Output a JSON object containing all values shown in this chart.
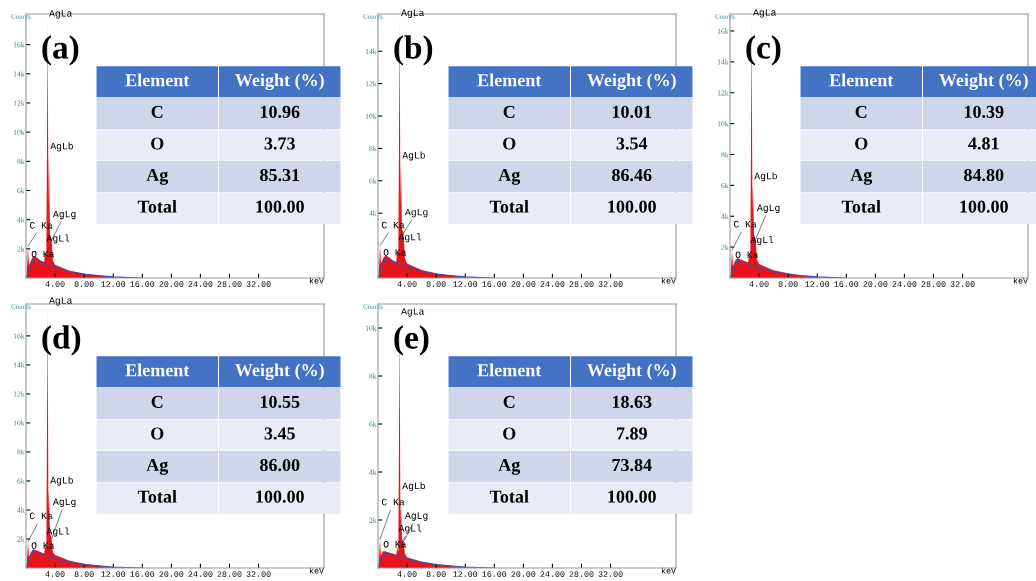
{
  "chart_data": [
    {
      "type": "area",
      "title": "(a)",
      "xlabel": "keV",
      "ylabel": "Counts",
      "xlim": [
        0,
        41
      ],
      "ylim": [
        0,
        18100
      ],
      "xticks": [
        {
          "value": 4,
          "label": "4.00"
        },
        {
          "value": 8,
          "label": "8.00"
        },
        {
          "value": 12,
          "label": "12.00"
        },
        {
          "value": 16,
          "label": "16.00"
        },
        {
          "value": 20,
          "label": "20.00"
        },
        {
          "value": 24,
          "label": "24.00"
        },
        {
          "value": 28,
          "label": "28.00"
        },
        {
          "value": 32,
          "label": "32.00"
        }
      ],
      "yticks": [
        {
          "value": 2000,
          "label": "2k"
        },
        {
          "value": 4000,
          "label": "4k"
        },
        {
          "value": 6000,
          "label": "6k"
        },
        {
          "value": 8000,
          "label": "8k"
        },
        {
          "value": 10000,
          "label": "10k"
        },
        {
          "value": 12000,
          "label": "12k"
        },
        {
          "value": 14000,
          "label": "14k"
        },
        {
          "value": 16000,
          "label": "16k"
        }
      ],
      "series": [
        {
          "color": "#e8141c",
          "x": [
            0.1,
            0.28,
            0.4,
            0.52,
            0.7,
            1.0,
            1.5,
            2.0,
            2.5,
            2.63,
            2.8,
            2.98,
            3.08,
            3.15,
            3.3,
            3.52,
            3.7,
            4.0,
            5.0,
            6.0,
            8.0,
            10.0,
            12.0,
            16.0,
            41.0
          ],
          "values": [
            300,
            2200,
            900,
            1000,
            1200,
            1500,
            1400,
            1200,
            1100,
            1700,
            1500,
            17500,
            5000,
            8400,
            3000,
            2600,
            1200,
            900,
            700,
            500,
            300,
            150,
            50,
            0,
            0
          ]
        },
        {
          "type": "line",
          "color": "#3b4fa8",
          "x": [
            0,
            1,
            2,
            4,
            6,
            8,
            12,
            16
          ],
          "values": [
            0,
            1300,
            1100,
            700,
            450,
            250,
            80,
            0
          ]
        }
      ],
      "annotations": [
        {
          "text": "AgLa",
          "x": 2.98,
          "y": 17500
        },
        {
          "text": "AgLb",
          "x": 3.15,
          "y": 8400
        },
        {
          "text": "AgLg",
          "x": 3.52,
          "y": 2600
        },
        {
          "text": "AgLl",
          "x": 2.63,
          "y": 1700
        },
        {
          "text": "C Ka",
          "x": 0.28,
          "y": 2200
        },
        {
          "text": "O Ka",
          "x": 0.52,
          "y": 1000
        }
      ]
    },
    {
      "type": "other",
      "annotations": [
        "Element",
        "Weight (%)"
      ],
      "categories": [
        "C",
        "O",
        "Ag",
        "Total"
      ],
      "value_labels": [
        "10.96",
        "3.73",
        "85.31",
        "100.00"
      ],
      "colors": [
        "#cfd5ea",
        "#e9ebf5",
        "#cfd5ea",
        "#e9ebf5"
      ]
    },
    {
      "type": "area",
      "title": "(b)",
      "xlabel": "keV",
      "ylabel": "Counts",
      "xlim": [
        0,
        41
      ],
      "ylim": [
        0,
        16300
      ],
      "xticks": [
        {
          "value": 4,
          "label": "4.00"
        },
        {
          "value": 8,
          "label": "8.00"
        },
        {
          "value": 12,
          "label": "12.00"
        },
        {
          "value": 16,
          "label": "16.00"
        },
        {
          "value": 20,
          "label": "20.00"
        },
        {
          "value": 24,
          "label": "24.00"
        },
        {
          "value": 28,
          "label": "28.00"
        },
        {
          "value": 32,
          "label": "32.00"
        }
      ],
      "yticks": [
        {
          "value": 4000,
          "label": "4k"
        },
        {
          "value": 6000,
          "label": "6k"
        },
        {
          "value": 8000,
          "label": "8k"
        },
        {
          "value": 10000,
          "label": "10k"
        },
        {
          "value": 12000,
          "label": "12k"
        },
        {
          "value": 14000,
          "label": "14k"
        }
      ],
      "series": [
        {
          "color": "#e8141c",
          "x": [
            0.1,
            0.28,
            0.4,
            0.52,
            0.7,
            1.0,
            1.5,
            2.0,
            2.5,
            2.63,
            2.8,
            2.98,
            3.08,
            3.15,
            3.3,
            3.52,
            3.7,
            4.0,
            5.0,
            6.0,
            8.0,
            10.0,
            12.0,
            16.0,
            41.0
          ],
          "values": [
            300,
            2000,
            900,
            1000,
            1200,
            1400,
            1300,
            1100,
            1000,
            1600,
            1500,
            15800,
            4500,
            7000,
            3000,
            2800,
            1200,
            900,
            700,
            500,
            300,
            150,
            50,
            0,
            0
          ]
        },
        {
          "type": "line",
          "color": "#3b4fa8",
          "x": [
            0,
            1,
            2,
            4,
            6,
            8,
            12,
            16
          ],
          "values": [
            0,
            1200,
            1000,
            650,
            420,
            230,
            70,
            0
          ]
        }
      ],
      "annotations": [
        {
          "text": "AgLa",
          "x": 2.98,
          "y": 15800
        },
        {
          "text": "AgLb",
          "x": 3.15,
          "y": 7000
        },
        {
          "text": "AgLg",
          "x": 3.52,
          "y": 2800
        },
        {
          "text": "AgLl",
          "x": 2.63,
          "y": 1600
        },
        {
          "text": "C Ka",
          "x": 0.28,
          "y": 2000
        },
        {
          "text": "O Ka",
          "x": 0.52,
          "y": 1000
        }
      ]
    },
    {
      "type": "other",
      "annotations": [
        "Element",
        "Weight (%)"
      ],
      "categories": [
        "C",
        "O",
        "Ag",
        "Total"
      ],
      "value_labels": [
        "10.01",
        "3.54",
        "86.46",
        "100.00"
      ],
      "colors": [
        "#cfd5ea",
        "#e9ebf5",
        "#cfd5ea",
        "#e9ebf5"
      ]
    },
    {
      "type": "area",
      "title": "(c)",
      "xlabel": "keV",
      "ylabel": "Counts",
      "xlim": [
        0,
        41
      ],
      "ylim": [
        0,
        17100
      ],
      "xticks": [
        {
          "value": 4,
          "label": "4.00"
        },
        {
          "value": 8,
          "label": "8.00"
        },
        {
          "value": 12,
          "label": "12.00"
        },
        {
          "value": 16,
          "label": "16.00"
        },
        {
          "value": 20,
          "label": "20.00"
        },
        {
          "value": 24,
          "label": "24.00"
        },
        {
          "value": 28,
          "label": "28.00"
        },
        {
          "value": 32,
          "label": "32.00"
        }
      ],
      "yticks": [
        {
          "value": 2000,
          "label": "2k"
        },
        {
          "value": 4000,
          "label": "4k"
        },
        {
          "value": 6000,
          "label": "6k"
        },
        {
          "value": 8000,
          "label": "8k"
        },
        {
          "value": 10000,
          "label": "10k"
        },
        {
          "value": 12000,
          "label": "12k"
        },
        {
          "value": 14000,
          "label": "14k"
        },
        {
          "value": 16000,
          "label": "16k"
        }
      ],
      "series": [
        {
          "color": "#e8141c",
          "x": [
            0.1,
            0.28,
            0.4,
            0.52,
            0.7,
            1.0,
            1.5,
            2.0,
            2.5,
            2.63,
            2.8,
            2.98,
            3.08,
            3.15,
            3.3,
            3.52,
            3.7,
            4.0,
            5.0,
            6.0,
            8.0,
            10.0,
            12.0,
            16.0,
            41.0
          ],
          "values": [
            300,
            1800,
            800,
            900,
            1100,
            1300,
            1200,
            1100,
            1000,
            1500,
            1400,
            16600,
            4500,
            6000,
            2800,
            2500,
            1200,
            900,
            700,
            500,
            300,
            150,
            50,
            0,
            0
          ]
        },
        {
          "type": "line",
          "color": "#3b4fa8",
          "x": [
            0,
            1,
            2,
            4,
            6,
            8,
            12,
            16
          ],
          "values": [
            0,
            1200,
            1000,
            650,
            420,
            230,
            70,
            0
          ]
        }
      ],
      "annotations": [
        {
          "text": "AgLa",
          "x": 2.98,
          "y": 16600
        },
        {
          "text": "AgLb",
          "x": 3.15,
          "y": 6000
        },
        {
          "text": "AgLg",
          "x": 3.52,
          "y": 2500
        },
        {
          "text": "AgLl",
          "x": 2.63,
          "y": 1500
        },
        {
          "text": "C Ka",
          "x": 0.28,
          "y": 1800
        },
        {
          "text": "O Ka",
          "x": 0.52,
          "y": 900
        }
      ]
    },
    {
      "type": "other",
      "annotations": [
        "Element",
        "Weight (%)"
      ],
      "categories": [
        "C",
        "O",
        "Ag",
        "Total"
      ],
      "value_labels": [
        "10.39",
        "4.81",
        "84.80",
        "100.00"
      ],
      "colors": [
        "#cfd5ea",
        "#e9ebf5",
        "#cfd5ea",
        "#e9ebf5"
      ]
    },
    {
      "type": "area",
      "title": "(d)",
      "xlabel": "keV",
      "ylabel": "Counts",
      "xlim": [
        0,
        41
      ],
      "ylim": [
        0,
        18200
      ],
      "xticks": [
        {
          "value": 4,
          "label": "4.00"
        },
        {
          "value": 8,
          "label": "8.00"
        },
        {
          "value": 12,
          "label": "12.00"
        },
        {
          "value": 16,
          "label": "16.00"
        },
        {
          "value": 20,
          "label": "20.00"
        },
        {
          "value": 24,
          "label": "24.00"
        },
        {
          "value": 28,
          "label": "28.00"
        },
        {
          "value": 32,
          "label": "32.00"
        }
      ],
      "yticks": [
        {
          "value": 2000,
          "label": "2k"
        },
        {
          "value": 4000,
          "label": "4k"
        },
        {
          "value": 6000,
          "label": "6k"
        },
        {
          "value": 8000,
          "label": "8k"
        },
        {
          "value": 10000,
          "label": "10k"
        },
        {
          "value": 12000,
          "label": "12k"
        },
        {
          "value": 14000,
          "label": "14k"
        },
        {
          "value": 16000,
          "label": "16k"
        }
      ],
      "series": [
        {
          "color": "#e8141c",
          "x": [
            0.1,
            0.28,
            0.4,
            0.52,
            0.7,
            1.0,
            1.5,
            2.0,
            2.5,
            2.63,
            2.8,
            2.98,
            3.08,
            3.15,
            3.3,
            3.52,
            3.7,
            4.0,
            5.0,
            6.0,
            8.0,
            10.0,
            12.0,
            16.0,
            41.0
          ],
          "values": [
            300,
            1800,
            800,
            900,
            1100,
            1300,
            1200,
            1100,
            1000,
            1500,
            1400,
            17800,
            4000,
            5400,
            2500,
            2000,
            1100,
            900,
            700,
            500,
            300,
            150,
            50,
            0,
            0
          ]
        },
        {
          "type": "line",
          "color": "#3b4fa8",
          "x": [
            0,
            1,
            2,
            4,
            6,
            8,
            12,
            16
          ],
          "values": [
            0,
            1200,
            1000,
            650,
            420,
            230,
            70,
            0
          ]
        }
      ],
      "annotations": [
        {
          "text": "AgLa",
          "x": 2.98,
          "y": 17800
        },
        {
          "text": "AgLb",
          "x": 3.15,
          "y": 5400
        },
        {
          "text": "AgLl",
          "x": 2.63,
          "y": 1500
        },
        {
          "text": "AgLg",
          "x": 3.52,
          "y": 2000
        },
        {
          "text": "C Ka",
          "x": 0.28,
          "y": 1800
        },
        {
          "text": "O Ka",
          "x": 0.52,
          "y": 900
        }
      ]
    },
    {
      "type": "other",
      "annotations": [
        "Element",
        "Weight (%)"
      ],
      "categories": [
        "C",
        "O",
        "Ag",
        "Total"
      ],
      "value_labels": [
        "10.55",
        "3.45",
        "86.00",
        "100.00"
      ],
      "colors": [
        "#cfd5ea",
        "#e9ebf5",
        "#cfd5ea",
        "#e9ebf5"
      ]
    },
    {
      "type": "area",
      "title": "(e)",
      "xlabel": "keV",
      "ylabel": "Counts",
      "xlim": [
        0,
        41
      ],
      "ylim": [
        0,
        11000
      ],
      "xticks": [
        {
          "value": 4,
          "label": "4.00"
        },
        {
          "value": 8,
          "label": "8.00"
        },
        {
          "value": 12,
          "label": "12.00"
        },
        {
          "value": 16,
          "label": "16.00"
        },
        {
          "value": 20,
          "label": "20.00"
        },
        {
          "value": 24,
          "label": "24.00"
        },
        {
          "value": 28,
          "label": "28.00"
        },
        {
          "value": 32,
          "label": "32.00"
        }
      ],
      "yticks": [
        {
          "value": 2000,
          "label": "2k"
        },
        {
          "value": 4000,
          "label": "4k"
        },
        {
          "value": 6000,
          "label": "6k"
        },
        {
          "value": 8000,
          "label": "8k"
        },
        {
          "value": 10000,
          "label": "10k"
        }
      ],
      "series": [
        {
          "color": "#e8141c",
          "x": [
            0.1,
            0.28,
            0.4,
            0.52,
            0.7,
            1.0,
            1.5,
            2.0,
            2.5,
            2.63,
            2.8,
            2.98,
            3.08,
            3.15,
            3.3,
            3.52,
            3.7,
            4.0,
            5.0,
            6.0,
            8.0,
            10.0,
            12.0,
            16.0,
            41.0
          ],
          "values": [
            200,
            1200,
            500,
            600,
            700,
            700,
            650,
            600,
            550,
            800,
            700,
            10300,
            1800,
            2800,
            1200,
            1100,
            600,
            450,
            350,
            250,
            150,
            80,
            30,
            0,
            0
          ]
        },
        {
          "type": "line",
          "color": "#3b4fa8",
          "x": [
            0,
            1,
            2,
            4,
            6,
            8,
            12,
            16
          ],
          "values": [
            0,
            650,
            550,
            380,
            250,
            140,
            40,
            0
          ]
        }
      ],
      "annotations": [
        {
          "text": "AgLa",
          "x": 2.98,
          "y": 10300
        },
        {
          "text": "AgLb",
          "x": 3.15,
          "y": 2800
        },
        {
          "text": "AgLg",
          "x": 3.52,
          "y": 1100
        },
        {
          "text": "AgLl",
          "x": 2.63,
          "y": 800
        },
        {
          "text": "C Ka",
          "x": 0.28,
          "y": 1200
        },
        {
          "text": "O Ka",
          "x": 0.52,
          "y": 600
        }
      ]
    },
    {
      "type": "other",
      "annotations": [
        "Element",
        "Weight (%)"
      ],
      "categories": [
        "C",
        "O",
        "Ag",
        "Total"
      ],
      "value_labels": [
        "18.63",
        "7.89",
        "73.84",
        "100.00"
      ],
      "colors": [
        "#cfd5ea",
        "#e9ebf5",
        "#cfd5ea",
        "#e9ebf5"
      ]
    }
  ]
}
